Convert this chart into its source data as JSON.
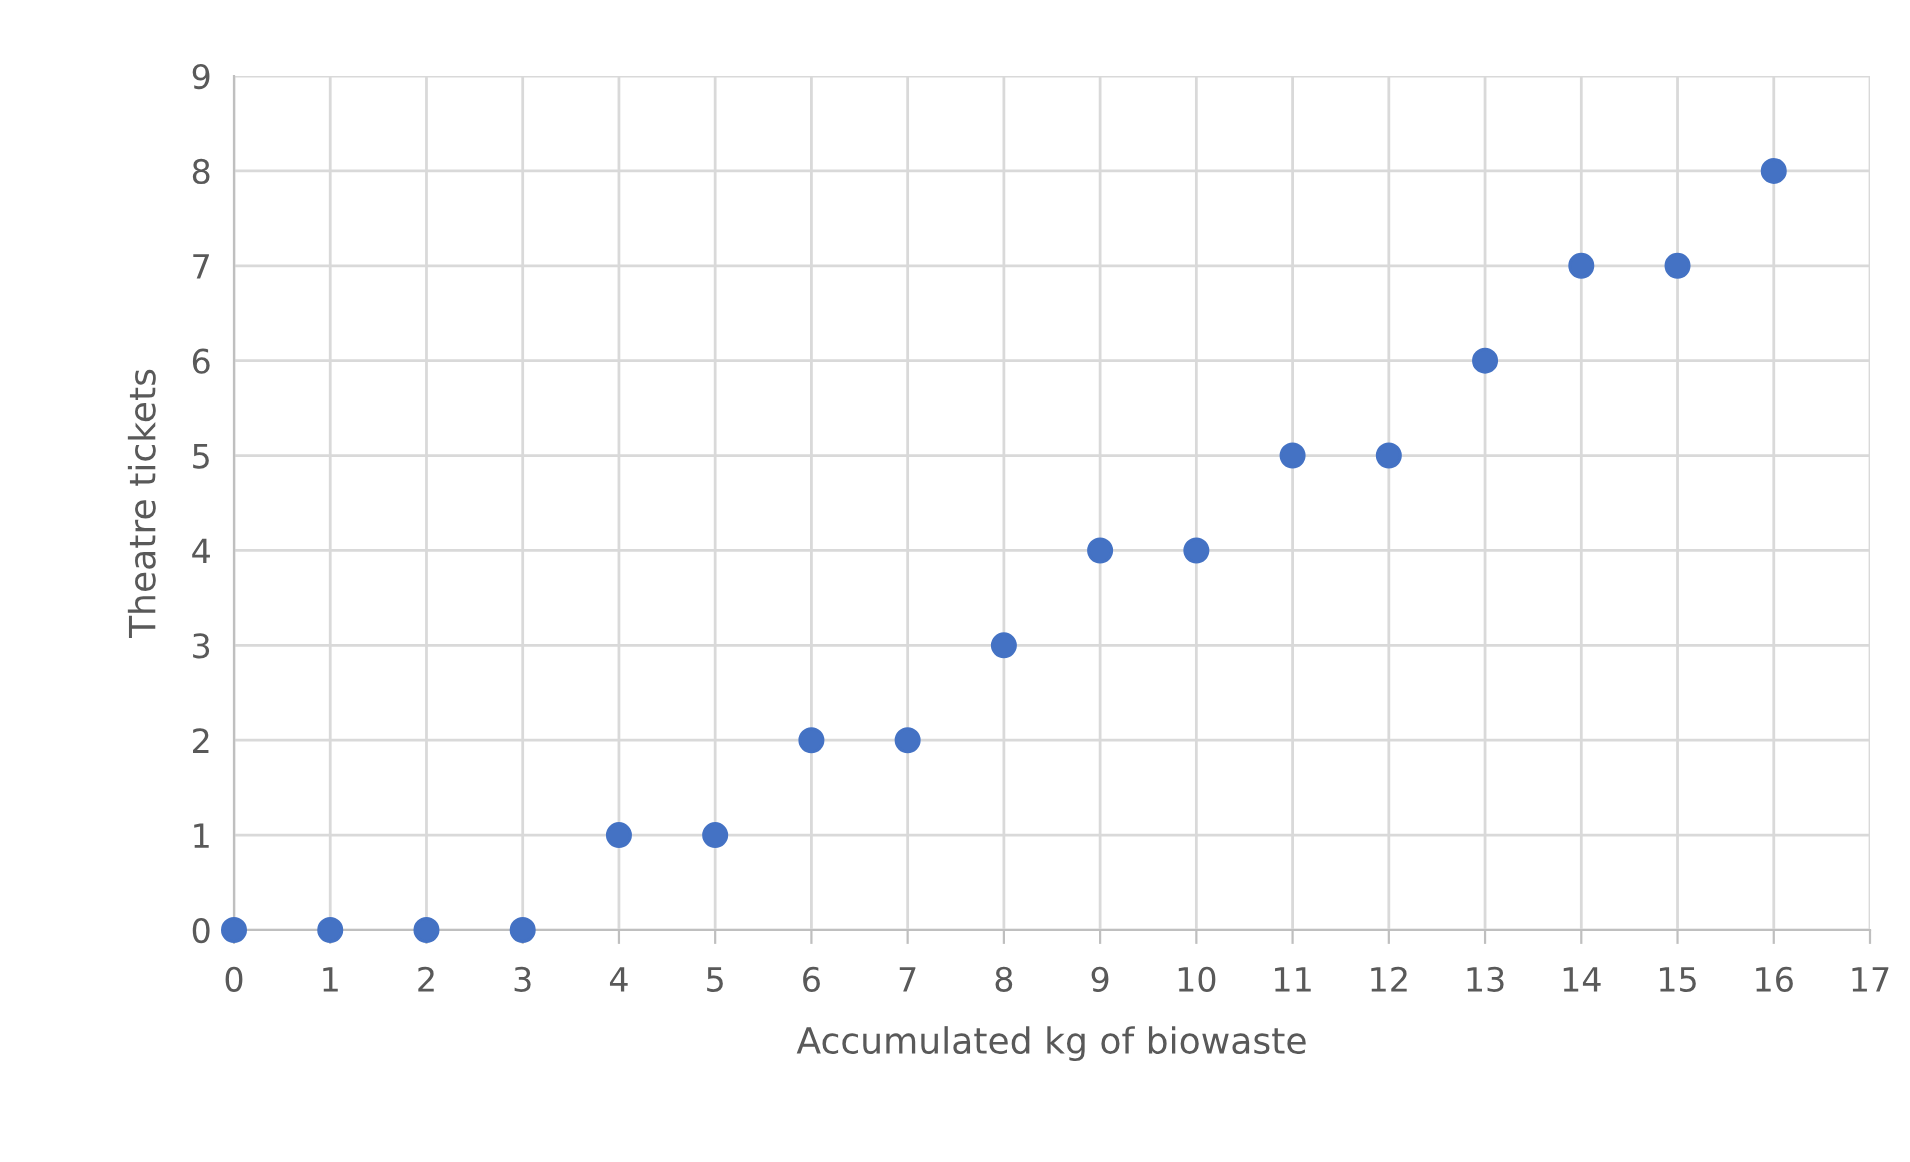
{
  "chart_data": {
    "type": "scatter",
    "xlabel": "Accumulated kg of biowaste",
    "ylabel": "Theatre tickets",
    "x": [
      0,
      1,
      2,
      3,
      4,
      5,
      6,
      7,
      8,
      9,
      10,
      11,
      12,
      13,
      14,
      15,
      16
    ],
    "series": [
      {
        "color": "#4472c4",
        "values": [
          0,
          0,
          0,
          0,
          1,
          1,
          2,
          2,
          3,
          4,
          4,
          5,
          5,
          6,
          7,
          7,
          8
        ]
      }
    ],
    "xlim": [
      0,
      17
    ],
    "xticks": [
      0,
      1,
      2,
      3,
      4,
      5,
      6,
      7,
      8,
      9,
      10,
      11,
      12,
      13,
      14,
      15,
      16,
      17
    ],
    "ylim": [
      0,
      9
    ],
    "yticks": [
      0,
      1,
      2,
      3,
      4,
      5,
      6,
      7,
      8,
      9
    ],
    "grid": true,
    "marker": "circle"
  }
}
